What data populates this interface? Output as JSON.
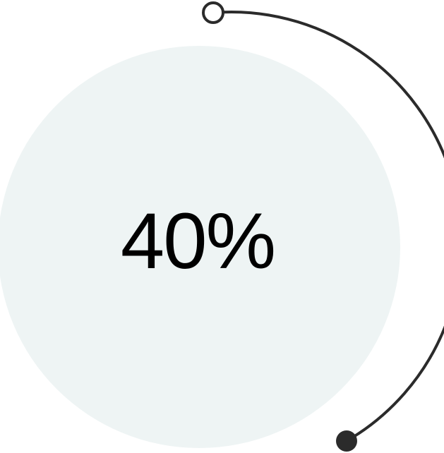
{
  "progress": {
    "label": "40%",
    "value": 0.4
  },
  "colors": {
    "disc_fill": "#eef4f4",
    "arc_stroke": "#2b2b2b",
    "start_dot_fill": "#ffffff",
    "end_dot_fill": "#2b2b2b",
    "text": "#000000"
  }
}
